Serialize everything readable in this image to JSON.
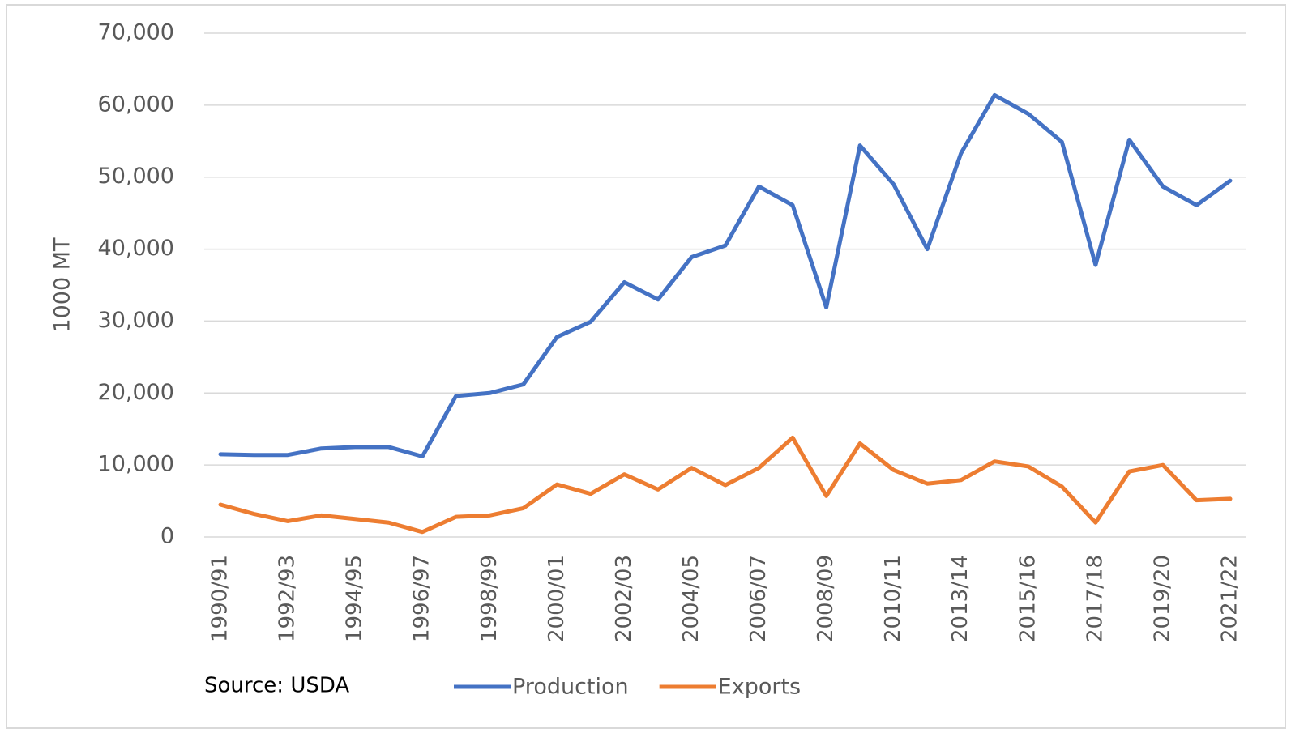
{
  "chart_data": {
    "type": "line",
    "y_label": "1000 MT",
    "source": "Source: USDA",
    "categories": [
      "1990/91",
      null,
      "1992/93",
      null,
      "1994/95",
      null,
      "1996/97",
      null,
      "1998/99",
      null,
      "2000/01",
      null,
      "2002/03",
      null,
      "2004/05",
      null,
      "2006/07",
      null,
      "2008/09",
      null,
      "2010/11",
      null,
      "2013/14",
      null,
      "2015/16",
      null,
      "2017/18",
      null,
      "2019/20",
      null,
      "2021/22"
    ],
    "series": [
      {
        "name": "Production",
        "color": "#4472c4",
        "values": [
          11500,
          11400,
          11400,
          12300,
          12500,
          12500,
          11200,
          19600,
          20000,
          21200,
          27800,
          29900,
          35400,
          33000,
          38900,
          40500,
          48700,
          46100,
          31900,
          54400,
          49000,
          40000,
          53300,
          61400,
          58800,
          54900,
          37800,
          55200,
          48700,
          46100,
          49500
        ]
      },
      {
        "name": "Exports",
        "color": "#ed7d31",
        "values": [
          4500,
          3200,
          2200,
          3000,
          2500,
          2000,
          700,
          2800,
          3000,
          4000,
          7300,
          6000,
          8700,
          6600,
          9600,
          7200,
          9600,
          13800,
          5700,
          13000,
          9300,
          7400,
          7900,
          10500,
          9800,
          7000,
          2000,
          9100,
          10000,
          5100,
          5300
        ]
      }
    ],
    "ylim": [
      0,
      70000
    ],
    "yticks": [
      0,
      {
        "value": 10000,
        "label": "10,000"
      },
      {
        "value": 20000,
        "label": "20,000"
      },
      {
        "value": 30000,
        "label": "30,000"
      },
      {
        "value": 40000,
        "label": "40,000"
      },
      {
        "value": 50000,
        "label": "50,000"
      },
      {
        "value": 60000,
        "label": "60,000"
      },
      {
        "value": 70000,
        "label": "70,000"
      }
    ],
    "grid": true,
    "legend": "bottom"
  }
}
